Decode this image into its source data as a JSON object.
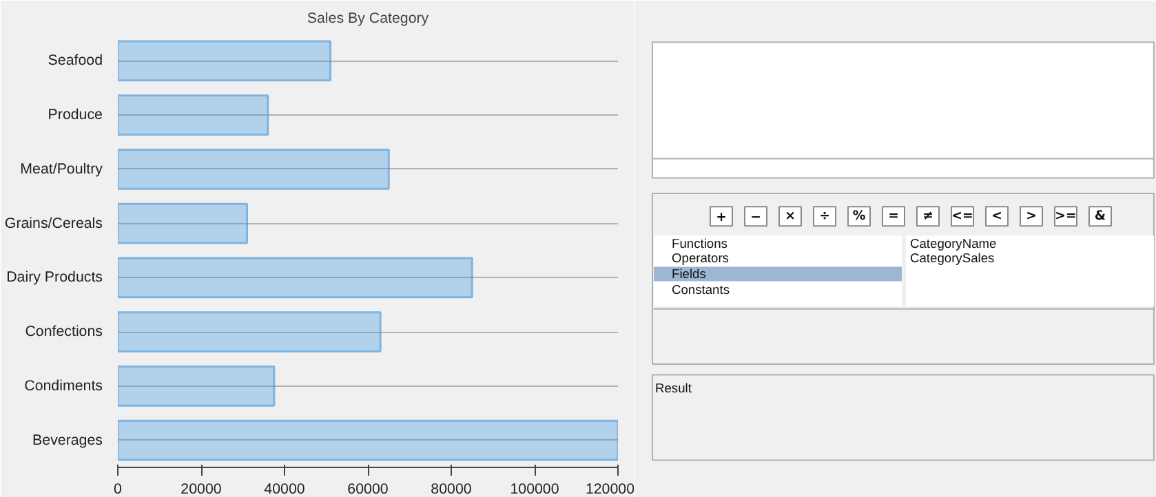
{
  "chart_data": [
    {
      "type": "bar",
      "title": "Sales By Category",
      "orientation": "horizontal",
      "categories": [
        "Seafood",
        "Produce",
        "Meat/Poultry",
        "Grains/Cereals",
        "Dairy Products",
        "Confections",
        "Condiments",
        "Beverages"
      ],
      "values": [
        51000,
        36000,
        65000,
        31000,
        85000,
        63000,
        37500,
        120000
      ],
      "color": "#a7cbea",
      "xlim": [
        0,
        120000
      ],
      "xticks": [
        0,
        20000,
        40000,
        60000,
        80000,
        100000,
        120000
      ],
      "grid": "y"
    },
    {
      "type": "other",
      "annotations": [
        "+",
        "−",
        "×",
        "÷",
        "%",
        "=",
        "≠",
        "<=",
        "<",
        ">",
        ">=",
        "&",
        "Functions",
        "Operators",
        "Fields",
        "Constants",
        "CategoryName",
        "CategorySales",
        "Result"
      ]
    }
  ]
}
